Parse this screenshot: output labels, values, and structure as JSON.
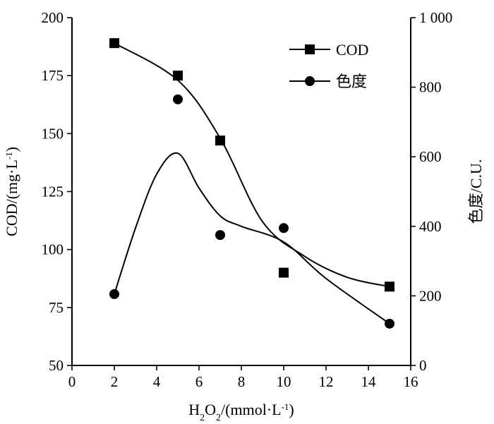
{
  "chart_data": {
    "type": "line",
    "x_axis": {
      "label_parts": [
        "H",
        "2",
        "O",
        "2",
        "/(mmol·L",
        "-1",
        ")"
      ],
      "min": 0,
      "max": 16,
      "ticks": [
        0,
        2,
        4,
        6,
        8,
        10,
        12,
        14,
        16
      ]
    },
    "y_left": {
      "label_parts": [
        "COD/(mg·L",
        "-1",
        ")"
      ],
      "min": 50,
      "max": 200,
      "ticks": [
        50,
        75,
        100,
        125,
        150,
        175,
        200
      ]
    },
    "y_right": {
      "label": "色度/C.U.",
      "min": 0,
      "max": 1000,
      "ticks": [
        0,
        200,
        400,
        600,
        800,
        1000
      ],
      "tick_labels": [
        "0",
        "200",
        "400",
        "600",
        "800",
        "1 000"
      ]
    },
    "series": [
      {
        "name": "COD",
        "axis": "left",
        "marker": "square",
        "x": [
          2,
          5,
          7,
          10,
          15
        ],
        "y": [
          189,
          175,
          147,
          90,
          84
        ],
        "fit_curve": [
          [
            2,
            189
          ],
          [
            5,
            173
          ],
          [
            7,
            148
          ],
          [
            9,
            112
          ],
          [
            11,
            97
          ],
          [
            13,
            88
          ],
          [
            15,
            84
          ]
        ]
      },
      {
        "name": "色度",
        "axis": "right",
        "marker": "circle",
        "x": [
          2,
          5,
          7,
          10,
          15
        ],
        "y": [
          205,
          765,
          375,
          395,
          120
        ],
        "fit_curve": [
          [
            2,
            205
          ],
          [
            3,
            395
          ],
          [
            4,
            550
          ],
          [
            5,
            610
          ],
          [
            6,
            510
          ],
          [
            7,
            430
          ],
          [
            8,
            400
          ],
          [
            10,
            355
          ],
          [
            12,
            250
          ],
          [
            15,
            120
          ]
        ]
      }
    ],
    "legend": {
      "position": "top-right",
      "entries": [
        "COD",
        "色度"
      ]
    },
    "grid": false
  }
}
